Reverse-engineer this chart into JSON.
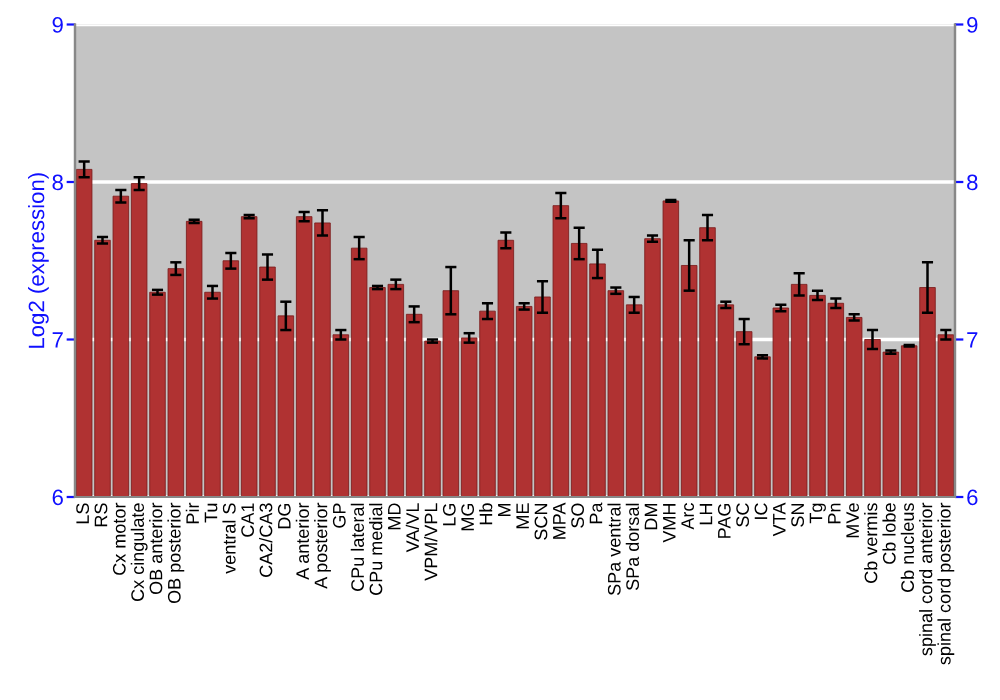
{
  "chart_data": {
    "type": "bar",
    "ylabel": "Log2 (expression)",
    "categories": [
      "LS",
      "RS",
      "Cx motor",
      "Cx cingulate",
      "OB anterior",
      "OB posterior",
      "Pir",
      "Tu",
      "ventral S",
      "CA1",
      "CA2/CA3",
      "DG",
      "A anterior",
      "A posterior",
      "GP",
      "CPu lateral",
      "CPu medial",
      "MD",
      "VA/VL",
      "VPM/VPL",
      "LG",
      "MG",
      "Hb",
      "M",
      "ME",
      "SCN",
      "MPA",
      "SO",
      "Pa",
      "SPa ventral",
      "SPa dorsal",
      "DM",
      "VMH",
      "Arc",
      "LH",
      "PAG",
      "SC",
      "IC",
      "VTA",
      "SN",
      "Tg",
      "Pn",
      "MVe",
      "Cb vermis",
      "Cb lobe",
      "Cb nucleus",
      "spinal cord anterior",
      "spinal cord posterior"
    ],
    "values": [
      8.08,
      7.63,
      7.91,
      7.99,
      7.3,
      7.45,
      7.75,
      7.3,
      7.5,
      7.78,
      7.46,
      7.15,
      7.78,
      7.74,
      7.03,
      7.58,
      7.33,
      7.35,
      7.16,
      6.99,
      7.31,
      7.01,
      7.18,
      7.63,
      7.21,
      7.27,
      7.85,
      7.61,
      7.48,
      7.31,
      7.22,
      7.64,
      7.88,
      7.47,
      7.71,
      7.22,
      7.05,
      6.89,
      7.2,
      7.35,
      7.28,
      7.23,
      7.14,
      7.0,
      6.92,
      6.96,
      7.33,
      7.03
    ],
    "errors": [
      0.05,
      0.02,
      0.04,
      0.04,
      0.015,
      0.04,
      0.01,
      0.04,
      0.05,
      0.01,
      0.08,
      0.09,
      0.03,
      0.08,
      0.03,
      0.07,
      0.01,
      0.03,
      0.05,
      0.01,
      0.15,
      0.03,
      0.05,
      0.05,
      0.02,
      0.1,
      0.08,
      0.1,
      0.09,
      0.02,
      0.05,
      0.02,
      0.005,
      0.16,
      0.08,
      0.02,
      0.08,
      0.01,
      0.02,
      0.07,
      0.03,
      0.03,
      0.02,
      0.06,
      0.01,
      0.005,
      0.16,
      0.03
    ],
    "color": "#b03232",
    "ylim": [
      6,
      9
    ],
    "yticks": [
      6,
      7,
      8,
      9
    ],
    "y2lim": [
      6,
      9
    ],
    "y2ticks": [
      6,
      7,
      8,
      9
    ],
    "grid": "y"
  }
}
